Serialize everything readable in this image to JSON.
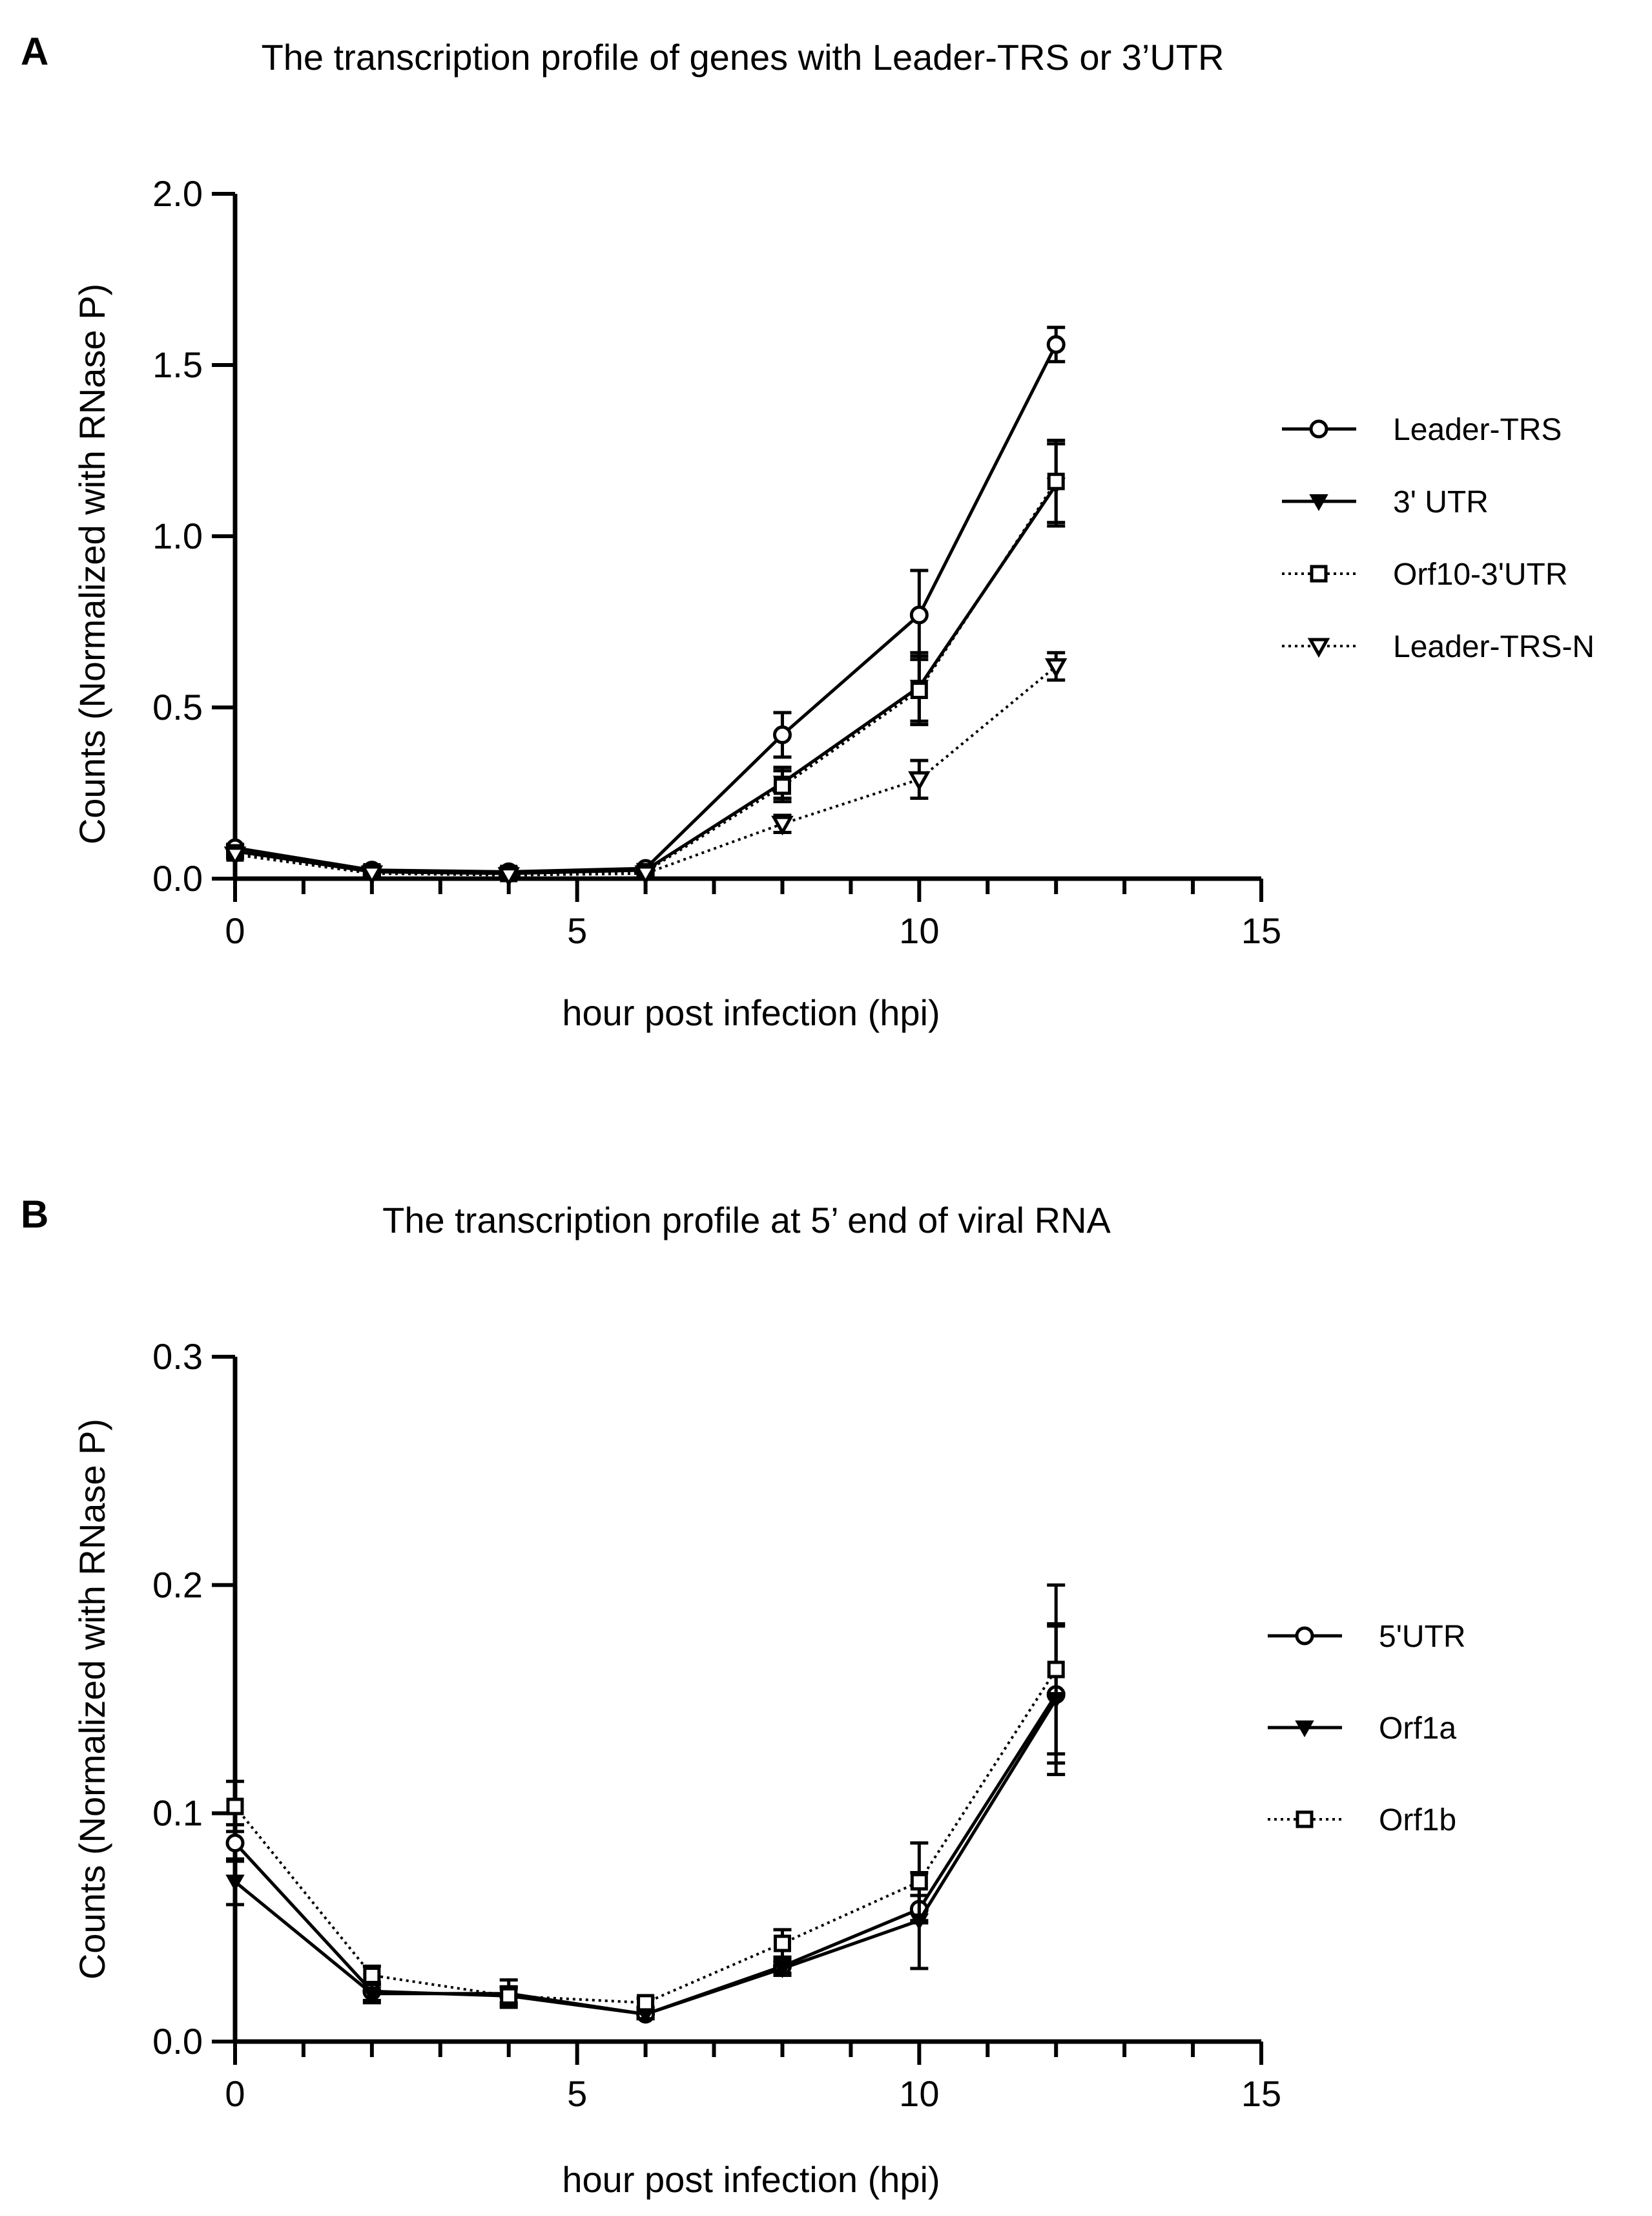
{
  "chart_data": [
    {
      "panel": "A",
      "type": "line",
      "title": "The transcription profile of genes with Leader-TRS or 3’UTR",
      "xlabel": "hour post infection (hpi)",
      "ylabel": "Counts (Normalized with RNase P)",
      "xlim": [
        0,
        15
      ],
      "ylim": [
        0,
        2.0
      ],
      "xticks": [
        "0",
        "5",
        "10",
        "15"
      ],
      "yticks": [
        "0.0",
        "0.5",
        "1.0",
        "1.5",
        "2.0"
      ],
      "x": [
        0,
        2,
        4,
        6,
        8,
        10,
        12
      ],
      "series": [
        {
          "name": "Leader-TRS",
          "marker": "circle",
          "dash": "solid",
          "values": [
            0.09,
            0.025,
            0.02,
            0.03,
            0.42,
            0.77,
            1.56
          ],
          "errors": [
            0.01,
            0.01,
            0.01,
            0.01,
            0.065,
            0.13,
            0.05
          ]
        },
        {
          "name": "3' UTR",
          "marker": "triangle-down",
          "dash": "solid",
          "values": [
            0.08,
            0.02,
            0.015,
            0.025,
            0.28,
            0.56,
            1.15
          ],
          "errors": [
            0.01,
            0.01,
            0.01,
            0.01,
            0.045,
            0.1,
            0.12
          ]
        },
        {
          "name": "Orf10-3'UTR",
          "marker": "square",
          "dash": "dotted",
          "values": [
            0.075,
            0.02,
            0.015,
            0.02,
            0.27,
            0.55,
            1.16
          ],
          "errors": [
            0.01,
            0.01,
            0.01,
            0.01,
            0.045,
            0.1,
            0.12
          ]
        },
        {
          "name": "Leader-TRS-N",
          "marker": "triangle-down-open",
          "dash": "dotted",
          "values": [
            0.07,
            0.015,
            0.01,
            0.015,
            0.16,
            0.29,
            0.62
          ],
          "errors": [
            0.01,
            0.01,
            0.01,
            0.01,
            0.025,
            0.055,
            0.04
          ]
        }
      ]
    },
    {
      "panel": "B",
      "type": "line",
      "title": "The transcription profile at 5’ end of viral RNA",
      "xlabel": "hour post infection (hpi)",
      "ylabel": "Counts (Normalized with RNase P)",
      "xlim": [
        0,
        15
      ],
      "ylim": [
        0,
        0.3
      ],
      "xticks": [
        "0",
        "5",
        "10",
        "15"
      ],
      "yticks": [
        "0.0",
        "0.1",
        "0.2",
        "0.3"
      ],
      "x": [
        0,
        2,
        4,
        6,
        8,
        10,
        12
      ],
      "series": [
        {
          "name": "5'UTR",
          "marker": "circle",
          "dash": "solid",
          "values": [
            0.087,
            0.022,
            0.02,
            0.012,
            0.033,
            0.058,
            0.152
          ],
          "errors": [
            0.008,
            0.004,
            0.003,
            0.002,
            0.003,
            0.006,
            0.03
          ]
        },
        {
          "name": "Orf1a",
          "marker": "triangle-down",
          "dash": "solid",
          "values": [
            0.07,
            0.021,
            0.021,
            0.012,
            0.032,
            0.053,
            0.15
          ],
          "errors": [
            0.01,
            0.004,
            0.006,
            0.002,
            0.003,
            0.021,
            0.033
          ]
        },
        {
          "name": "Orf1b",
          "marker": "square",
          "dash": "dotted",
          "values": [
            0.103,
            0.029,
            0.02,
            0.017,
            0.043,
            0.07,
            0.163
          ],
          "errors": [
            0.011,
            0.004,
            0.004,
            0.002,
            0.006,
            0.017,
            0.037
          ]
        }
      ]
    }
  ]
}
